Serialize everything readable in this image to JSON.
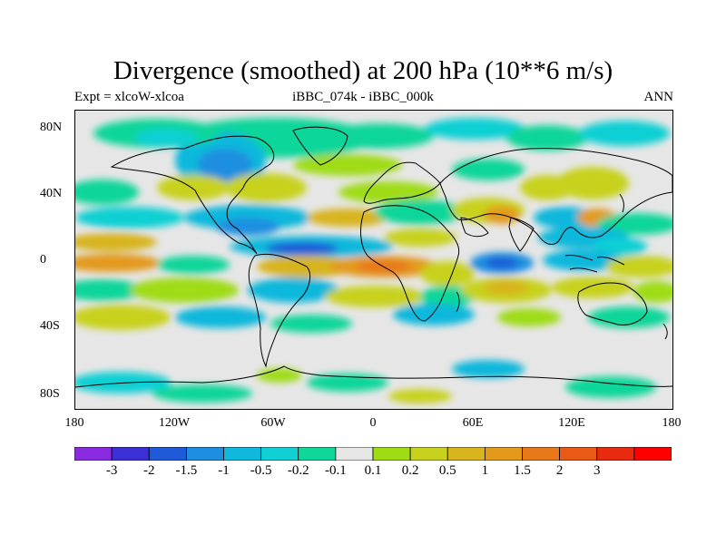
{
  "title": "Divergence (smoothed) at 200 hPa (10**6 m/s)",
  "subtitle_left": "Expt = xlcoW-xlcoa",
  "subtitle_center": "iBBC_074k - iBBC_000k",
  "subtitle_right": "ANN",
  "lat_labels": [
    "80N",
    "40N",
    "0",
    "40S",
    "80S"
  ],
  "lon_labels": [
    "180",
    "120W",
    "60W",
    "0",
    "60E",
    "120E",
    "180"
  ],
  "colorbar": {
    "colors": [
      "#8a2be2",
      "#3b2fd6",
      "#1f5ad8",
      "#1e8fe0",
      "#10b8dc",
      "#11d0d4",
      "#10d69a",
      "#e6e6e6",
      "#9fdc14",
      "#c8d21e",
      "#d8b41e",
      "#e39a1a",
      "#e8781a",
      "#e85a16",
      "#e82a10",
      "#ff0000"
    ],
    "labels": [
      "-3",
      "-2",
      "-1.5",
      "-1",
      "-0.5",
      "-0.2",
      "-0.1",
      "0.1",
      "0.2",
      "0.5",
      "1",
      "1.5",
      "2",
      "3"
    ]
  }
}
